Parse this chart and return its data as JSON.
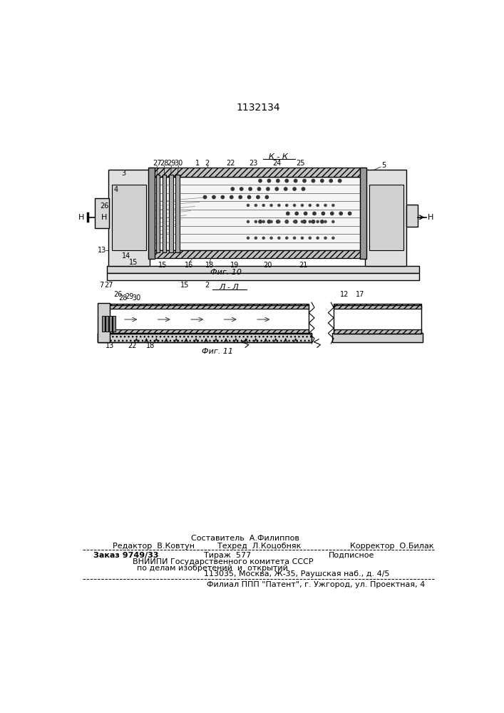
{
  "patent_number": "1132134",
  "background_color": "#ffffff",
  "line_color": "#000000",
  "fig10_caption": "Фиг. 10",
  "fig11_caption": "Фиг. 11",
  "section_kk": "К - К",
  "section_ll": "Л - Л"
}
